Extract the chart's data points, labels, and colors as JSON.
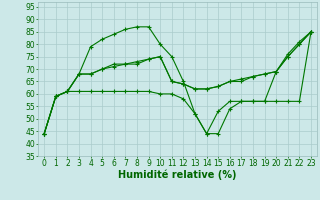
{
  "xlabel": "Humidité relative (%)",
  "xlim": [
    -0.5,
    23.5
  ],
  "ylim": [
    35,
    97
  ],
  "yticks": [
    35,
    40,
    45,
    50,
    55,
    60,
    65,
    70,
    75,
    80,
    85,
    90,
    95
  ],
  "xticks": [
    0,
    1,
    2,
    3,
    4,
    5,
    6,
    7,
    8,
    9,
    10,
    11,
    12,
    13,
    14,
    15,
    16,
    17,
    18,
    19,
    20,
    21,
    22,
    23
  ],
  "bg_color": "#cce8e8",
  "grid_color": "#aacccc",
  "line_color": "#007700",
  "series": [
    [
      44,
      59,
      61,
      68,
      79,
      82,
      84,
      86,
      87,
      87,
      80,
      75,
      65,
      52,
      44,
      44,
      54,
      57,
      57,
      57,
      69,
      76,
      81,
      85
    ],
    [
      44,
      59,
      61,
      68,
      68,
      70,
      71,
      72,
      73,
      74,
      75,
      65,
      64,
      62,
      62,
      63,
      65,
      66,
      67,
      68,
      69,
      75,
      80,
      85
    ],
    [
      44,
      59,
      61,
      61,
      61,
      61,
      61,
      61,
      61,
      61,
      60,
      60,
      58,
      52,
      44,
      53,
      57,
      57,
      57,
      57,
      57,
      57,
      57,
      85
    ],
    [
      44,
      59,
      61,
      68,
      68,
      70,
      72,
      72,
      72,
      74,
      75,
      65,
      64,
      62,
      62,
      63,
      65,
      65,
      67,
      68,
      69,
      75,
      80,
      85
    ]
  ],
  "tick_fontsize": 5.5,
  "xlabel_fontsize": 7,
  "tick_color": "#006600",
  "xlabel_color": "#006600"
}
